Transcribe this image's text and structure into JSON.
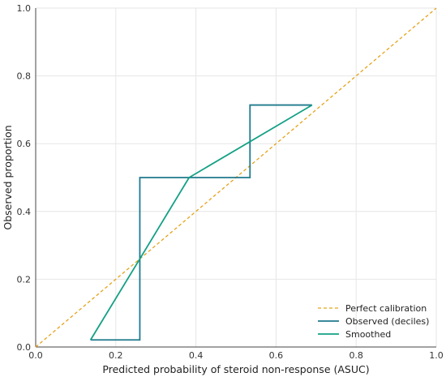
{
  "chart_data": {
    "type": "line",
    "title": "",
    "xlabel": "Predicted probability of steroid non-response (ASUC)",
    "ylabel": "Observed proportion",
    "xlim": [
      0.0,
      1.0
    ],
    "ylim": [
      0.0,
      1.0
    ],
    "xticks": [
      0.0,
      0.2,
      0.4,
      0.6,
      0.8,
      1.0
    ],
    "yticks": [
      0.0,
      0.2,
      0.4,
      0.6,
      0.8,
      1.0
    ],
    "xtick_labels": [
      "0.0",
      "0.2",
      "0.4",
      "0.6",
      "0.8",
      "1.0"
    ],
    "ytick_labels": [
      "0.0",
      "0.2",
      "0.4",
      "0.6",
      "0.8",
      "1.0"
    ],
    "grid": true,
    "legend_position": "bottom-right",
    "series": [
      {
        "name": "Perfect calibration",
        "style": "dashed",
        "color": "#E5A31A",
        "x": [
          0.0,
          1.0
        ],
        "y": [
          0.0,
          1.0
        ]
      },
      {
        "name": "Observed (deciles)",
        "style": "solid",
        "color": "#1F7A8C",
        "x": [
          0.137,
          0.26,
          0.26,
          0.535,
          0.535,
          0.69
        ],
        "y": [
          0.021,
          0.021,
          0.5,
          0.5,
          0.714,
          0.714
        ]
      },
      {
        "name": "Smoothed",
        "style": "solid",
        "color": "#13A085",
        "x": [
          0.137,
          0.26,
          0.383,
          0.69
        ],
        "y": [
          0.021,
          0.26,
          0.5,
          0.714
        ]
      }
    ]
  }
}
